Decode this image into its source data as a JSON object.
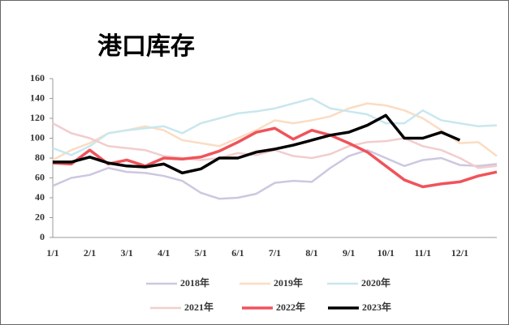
{
  "chart_data": {
    "type": "line",
    "title": "港口库存",
    "categories": [
      "1/1",
      null,
      "2/1",
      null,
      "3/1",
      null,
      "4/1",
      null,
      "5/1",
      null,
      "6/1",
      null,
      "7/1",
      null,
      "8/1",
      null,
      "9/1",
      null,
      "10/1",
      null,
      "11/1",
      null,
      "12/1",
      null,
      null
    ],
    "series": [
      {
        "name": "2018年",
        "color": "#cdc7e0",
        "values": [
          52,
          60,
          63,
          70,
          66,
          65,
          62,
          57,
          45,
          39,
          40,
          44,
          55,
          57,
          56,
          70,
          82,
          88,
          80,
          72,
          78,
          80,
          73,
          72,
          74
        ]
      },
      {
        "name": "2019年",
        "color": "#fbdcc2",
        "values": [
          78,
          88,
          95,
          105,
          108,
          112,
          108,
          98,
          95,
          92,
          100,
          108,
          118,
          115,
          118,
          122,
          130,
          135,
          133,
          128,
          120,
          108,
          95,
          96,
          82
        ]
      },
      {
        "name": "2020年",
        "color": "#c9e7ee",
        "values": [
          90,
          83,
          92,
          105,
          108,
          110,
          112,
          105,
          115,
          120,
          125,
          127,
          130,
          135,
          140,
          130,
          127,
          124,
          115,
          115,
          128,
          118,
          115,
          112,
          113
        ]
      },
      {
        "name": "2021年",
        "color": "#f2cdcd",
        "values": [
          115,
          105,
          100,
          92,
          90,
          88,
          82,
          80,
          78,
          80,
          85,
          83,
          88,
          82,
          80,
          84,
          92,
          96,
          97,
          100,
          92,
          88,
          80,
          70,
          72
        ]
      },
      {
        "name": "2022年",
        "color": "#f0535a",
        "values": [
          75,
          74,
          88,
          74,
          78,
          72,
          80,
          79,
          81,
          87,
          96,
          106,
          110,
          99,
          108,
          103,
          95,
          86,
          72,
          58,
          51,
          54,
          56,
          62,
          66
        ]
      },
      {
        "name": "2023年",
        "color": "#000000",
        "values": [
          76,
          76,
          81,
          75,
          72,
          71,
          74,
          65,
          69,
          80,
          80,
          86,
          89,
          93,
          98,
          103,
          106,
          113,
          123,
          100,
          100,
          106,
          98,
          null,
          null
        ]
      }
    ],
    "ylim": [
      0,
      160
    ],
    "yticks": [
      0,
      20,
      40,
      60,
      80,
      100,
      120,
      140,
      160
    ],
    "grid": false,
    "legend": "bottom"
  }
}
